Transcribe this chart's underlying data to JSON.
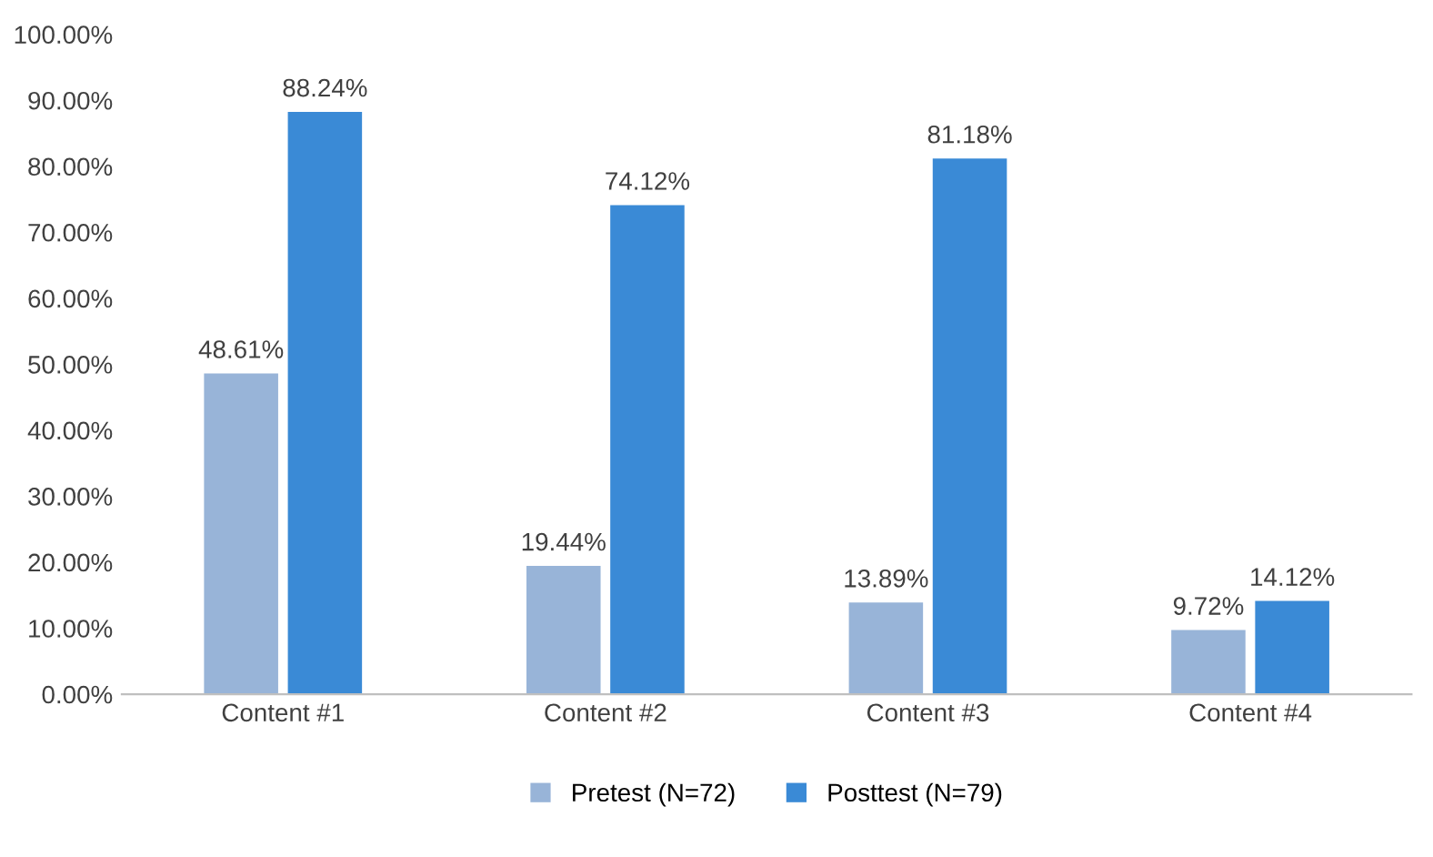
{
  "chart_data": {
    "type": "bar",
    "categories": [
      "Content #1",
      "Content #2",
      "Content #3",
      "Content #4"
    ],
    "series": [
      {
        "name": "Pretest (N=72)",
        "color": "#98b4d8",
        "values": [
          48.61,
          19.44,
          13.89,
          9.72
        ],
        "value_labels": [
          "48.61%",
          "19.44%",
          "13.89%",
          "9.72%"
        ]
      },
      {
        "name": "Posttest (N=79)",
        "color": "#3a8ad6",
        "values": [
          88.24,
          74.12,
          81.18,
          14.12
        ],
        "value_labels": [
          "88.24%",
          "74.12%",
          "81.18%",
          "14.12%"
        ]
      }
    ],
    "ylim": [
      0,
      100
    ],
    "yticks": [
      {
        "value": 0,
        "label": "0.00%"
      },
      {
        "value": 10,
        "label": "10.00%"
      },
      {
        "value": 20,
        "label": "20.00%"
      },
      {
        "value": 30,
        "label": "30.00%"
      },
      {
        "value": 40,
        "label": "40.00%"
      },
      {
        "value": 50,
        "label": "50.00%"
      },
      {
        "value": 60,
        "label": "60.00%"
      },
      {
        "value": 70,
        "label": "70.00%"
      },
      {
        "value": 80,
        "label": "80.00%"
      },
      {
        "value": 90,
        "label": "90.00%"
      },
      {
        "value": 100,
        "label": "100.00%"
      }
    ],
    "grid": false,
    "legend": "bottom"
  }
}
